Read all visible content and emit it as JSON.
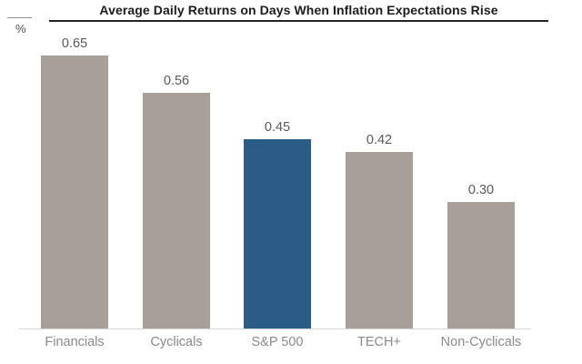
{
  "chart_data": {
    "type": "bar",
    "title": "Average Daily Returns on Days When Inflation Expectations Rise",
    "unit_label": "%",
    "categories": [
      "Financials",
      "Cyclicals",
      "S&P 500",
      "TECH+",
      "Non-Cyclicals"
    ],
    "values": [
      0.65,
      0.56,
      0.45,
      0.42,
      0.3
    ],
    "value_labels": [
      "0.65",
      "0.56",
      "0.45",
      "0.42",
      "0.30"
    ],
    "highlight_index": 2,
    "ylim": [
      0,
      0.7
    ],
    "grid": false,
    "legend": false,
    "colors": {
      "bar": "#a7a099",
      "highlight": "#2a5c87",
      "title": "#1c1c1c",
      "value_label": "#595959",
      "category_label": "#8a8a8a",
      "axis_line": "#d8d8d8"
    }
  }
}
